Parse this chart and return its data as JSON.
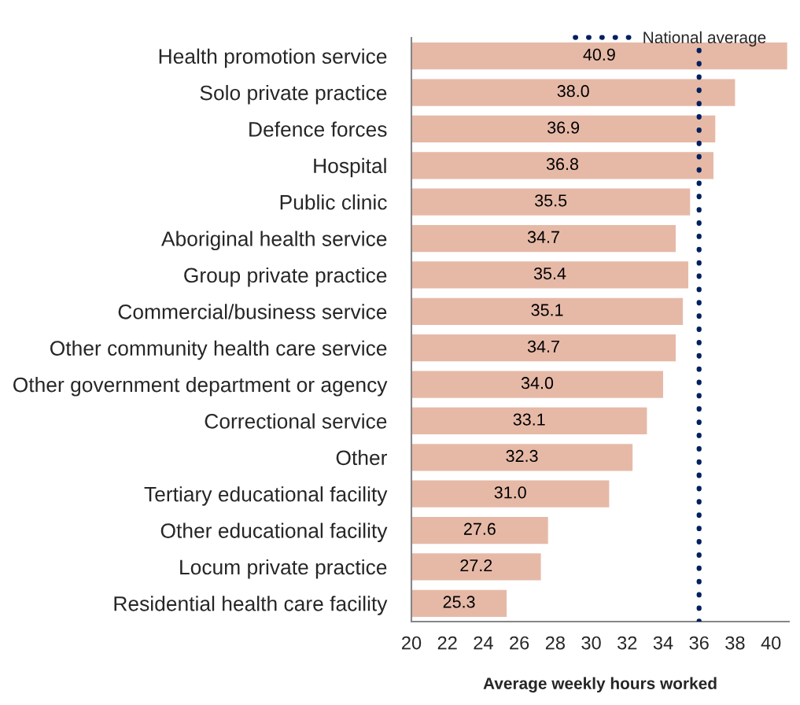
{
  "chart_data": {
    "type": "bar",
    "orientation": "horizontal",
    "categories": [
      "Health promotion service",
      "Solo private practice",
      "Defence forces",
      "Hospital",
      "Public clinic",
      "Aboriginal health service",
      "Group private practice",
      "Commercial/business service",
      "Other community health care service",
      "Other government department or agency",
      "Correctional service",
      "Other",
      "Tertiary educational facility",
      "Other educational facility",
      "Locum private practice",
      "Residential health care facility"
    ],
    "values": [
      40.9,
      38.0,
      36.9,
      36.8,
      35.5,
      34.7,
      35.4,
      35.1,
      34.7,
      34.0,
      33.1,
      32.3,
      31.0,
      27.6,
      27.2,
      25.3
    ],
    "value_labels": [
      "40.9",
      "38.0",
      "36.9",
      "36.8",
      "35.5",
      "34.7",
      "35.4",
      "35.1",
      "34.7",
      "34.0",
      "33.1",
      "32.3",
      "31.0",
      "27.6",
      "27.2",
      "25.3"
    ],
    "color": "#e6b9a7",
    "xlim": [
      20,
      41
    ],
    "xticks": [
      20,
      22,
      24,
      26,
      28,
      30,
      32,
      34,
      36,
      38,
      40
    ],
    "xlabel": "Average weekly hours worked",
    "ref_lines": [
      {
        "axis": "x",
        "value": 36,
        "label": "National average",
        "color": "#002060",
        "line_style": "dotted"
      }
    ],
    "legend": "top right"
  }
}
